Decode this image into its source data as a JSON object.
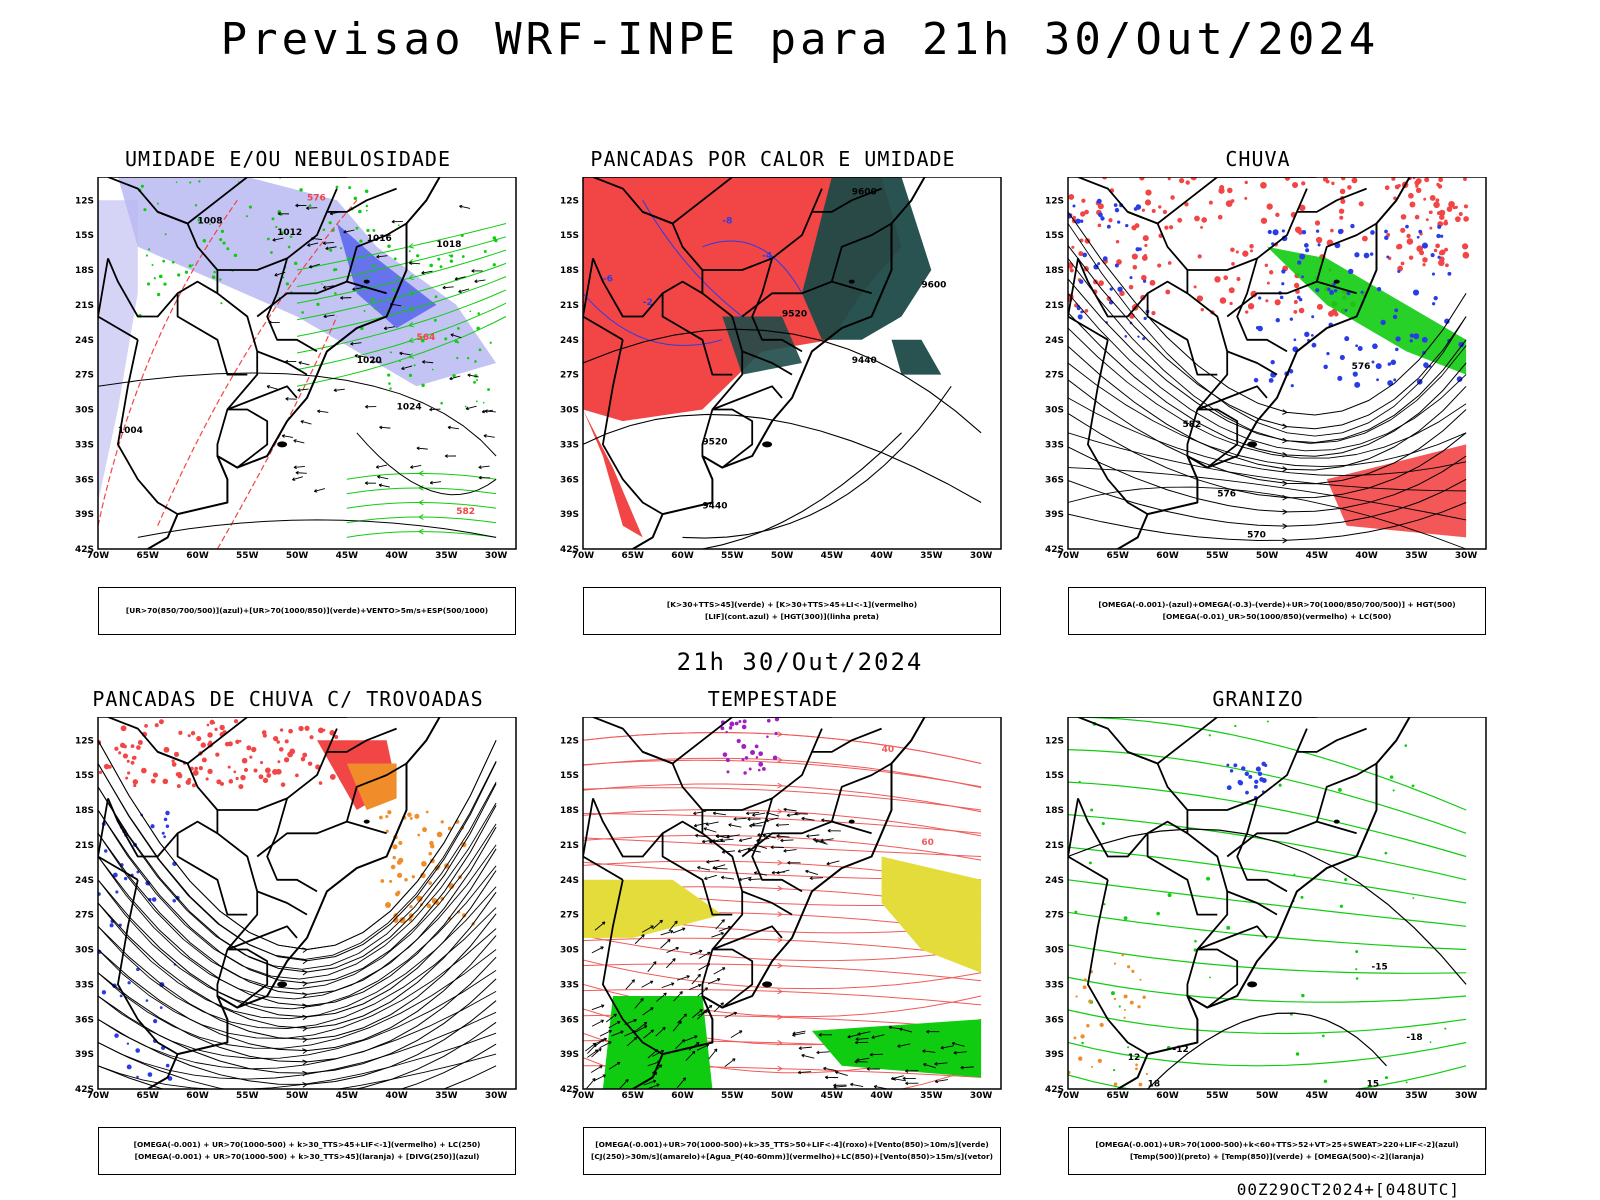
{
  "title": "Previsao WRF-INPE  para 21h 30/Out/2024",
  "mid_date": "21h 30/Out/2024",
  "footer": "00Z29OCT2024+[048UTC]",
  "axes": {
    "lat_labels": [
      "12S",
      "15S",
      "18S",
      "21S",
      "24S",
      "27S",
      "30S",
      "33S",
      "36S",
      "39S",
      "42S"
    ],
    "lon_labels": [
      "70W",
      "65W",
      "60W",
      "55W",
      "50W",
      "45W",
      "40W",
      "35W",
      "30W"
    ]
  },
  "colors": {
    "blue": "#2a3ce8",
    "lightblue": "#b9b8f2",
    "green": "#10cc10",
    "red": "#f24545",
    "darkteal": "#1e4a48",
    "orange": "#f08c2a",
    "yellow": "#e3dc3a",
    "purple": "#a020c0",
    "salmon": "#f05a5a"
  },
  "panels": [
    {
      "title": "UMIDADE E/OU NEBULOSIDADE",
      "legend": [
        "[UR>70(850/700/500)](azul)+[UR>70(1000/850)](verde)+VENTO>5m/s+ESP(500/1000)"
      ],
      "labels": {
        "a": "1008",
        "b": "1012",
        "c": "1016",
        "d": "1020",
        "e": "1024",
        "f": "576",
        "g": "564",
        "h": "1004",
        "i": "1018",
        "j": "582"
      }
    },
    {
      "title": "PANCADAS POR CALOR E UMIDADE",
      "legend": [
        "[K>30+TTS>45](verde) + [K>30+TTS>45+LI<-1](vermelho)",
        "[LIF](cont.azul) + [HGT(300)](linha preta)"
      ],
      "labels": {
        "a": "9600",
        "b": "9520",
        "c": "9440",
        "d": "-8",
        "e": "-4",
        "f": "-6",
        "g": "-2"
      }
    },
    {
      "title": "CHUVA",
      "legend": [
        "[OMEGA(-0.001)-(azul)+OMEGA(-0.3)-(verde)+UR>70(1000/850/700/500)] + HGT(500)",
        "[OMEGA(-0.01)_UR>50(1000/850)(vermelho) + LC(500)"
      ],
      "labels": {
        "a": "576",
        "b": "582",
        "c": "570"
      }
    },
    {
      "title": "PANCADAS DE CHUVA C/ TROVOADAS",
      "legend": [
        "[OMEGA(-0.001) + UR>70(1000-500) + k>30_TTS>45+LIF<-1](vermelho) + LC(250)",
        "[OMEGA(-0.001) + UR>70(1000-500) + k>30_TTS>45](laranja) + [DIVG(250)](azul)"
      ],
      "labels": {}
    },
    {
      "title": "TEMPESTADE",
      "legend": [
        "[OMEGA(-0.001)+UR>70(1000-500)+k>35_TTS>50+LIF<-4](roxo)+[Vento(850)>10m/s](verde)",
        "[CJ(250)>30m/s](amarelo)+[Agua_P(40-60mm)](vermelho)+LC(850)+[Vento(850)>15m/s](vetor)"
      ],
      "labels": {
        "a": "40",
        "b": "60"
      }
    },
    {
      "title": "GRANIZO",
      "legend": [
        "[OMEGA(-0.001)+UR>70(1000-500)+k<60+TTS>52+VT>25+SWEAT>220+LIF<-2](azul)",
        "[Temp(500)](preto) + [Temp(850)](verde) + [OMEGA(500)<-2](laranja)"
      ],
      "labels": {
        "a": "-15",
        "b": "-12",
        "c": "-18",
        "d": "15",
        "e": "18",
        "f": "12"
      }
    }
  ]
}
